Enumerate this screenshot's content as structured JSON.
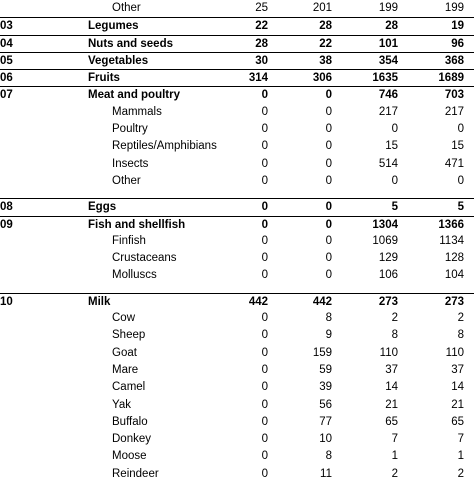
{
  "rows": [
    {
      "type": "sub",
      "code": "",
      "name": "Other",
      "v1": "25",
      "v2": "201",
      "v3": "199",
      "v4": "199"
    },
    {
      "type": "group",
      "code": "03",
      "name": "Legumes",
      "v1": "22",
      "v2": "28",
      "v3": "28",
      "v4": "19"
    },
    {
      "type": "group",
      "code": "04",
      "name": "Nuts and seeds",
      "v1": "28",
      "v2": "22",
      "v3": "101",
      "v4": "96"
    },
    {
      "type": "group",
      "code": "05",
      "name": "Vegetables",
      "v1": "30",
      "v2": "38",
      "v3": "354",
      "v4": "368"
    },
    {
      "type": "group",
      "code": "06",
      "name": "Fruits",
      "v1": "314",
      "v2": "306",
      "v3": "1635",
      "v4": "1689"
    },
    {
      "type": "group",
      "code": "07",
      "name": "Meat and poultry",
      "v1": "0",
      "v2": "0",
      "v3": "746",
      "v4": "703"
    },
    {
      "type": "sub",
      "code": "",
      "name": "Mammals",
      "v1": "0",
      "v2": "0",
      "v3": "217",
      "v4": "217"
    },
    {
      "type": "sub",
      "code": "",
      "name": "Poultry",
      "v1": "0",
      "v2": "0",
      "v3": "0",
      "v4": "0"
    },
    {
      "type": "sub",
      "code": "",
      "name": "Reptiles/Amphibians",
      "v1": "0",
      "v2": "0",
      "v3": "15",
      "v4": "15"
    },
    {
      "type": "sub",
      "code": "",
      "name": "Insects",
      "v1": "0",
      "v2": "0",
      "v3": "514",
      "v4": "471"
    },
    {
      "type": "sub",
      "code": "",
      "name": "Other",
      "v1": "0",
      "v2": "0",
      "v3": "0",
      "v4": "0"
    },
    {
      "type": "group",
      "code": "08",
      "name": "Eggs",
      "v1": "0",
      "v2": "0",
      "v3": "5",
      "v4": "5"
    },
    {
      "type": "group",
      "code": "09",
      "name": "Fish and shellfish",
      "v1": "0",
      "v2": "0",
      "v3": "1304",
      "v4": "1366"
    },
    {
      "type": "sub",
      "code": "",
      "name": "Finfish",
      "v1": "0",
      "v2": "0",
      "v3": "1069",
      "v4": "1134"
    },
    {
      "type": "sub",
      "code": "",
      "name": "Crustaceans",
      "v1": "0",
      "v2": "0",
      "v3": "129",
      "v4": "128"
    },
    {
      "type": "sub",
      "code": "",
      "name": "Molluscs",
      "v1": "0",
      "v2": "0",
      "v3": "106",
      "v4": "104"
    },
    {
      "type": "group",
      "code": "10",
      "name": "Milk",
      "v1": "442",
      "v2": "442",
      "v3": "273",
      "v4": "273"
    },
    {
      "type": "sub",
      "code": "",
      "name": "Cow",
      "v1": "0",
      "v2": "8",
      "v3": "2",
      "v4": "2"
    },
    {
      "type": "sub",
      "code": "",
      "name": "Sheep",
      "v1": "0",
      "v2": "9",
      "v3": "8",
      "v4": "8"
    },
    {
      "type": "sub",
      "code": "",
      "name": "Goat",
      "v1": "0",
      "v2": "159",
      "v3": "110",
      "v4": "110"
    },
    {
      "type": "sub",
      "code": "",
      "name": "Mare",
      "v1": "0",
      "v2": "59",
      "v3": "37",
      "v4": "37"
    },
    {
      "type": "sub",
      "code": "",
      "name": "Camel",
      "v1": "0",
      "v2": "39",
      "v3": "14",
      "v4": "14"
    },
    {
      "type": "sub",
      "code": "",
      "name": "Yak",
      "v1": "0",
      "v2": "56",
      "v3": "21",
      "v4": "21"
    },
    {
      "type": "sub",
      "code": "",
      "name": "Buffalo",
      "v1": "0",
      "v2": "77",
      "v3": "65",
      "v4": "65"
    },
    {
      "type": "sub",
      "code": "",
      "name": "Donkey",
      "v1": "0",
      "v2": "10",
      "v3": "7",
      "v4": "7"
    },
    {
      "type": "sub",
      "code": "",
      "name": "Moose",
      "v1": "0",
      "v2": "8",
      "v3": "1",
      "v4": "1"
    },
    {
      "type": "sub",
      "code": "",
      "name": "Reindeer",
      "v1": "0",
      "v2": "11",
      "v3": "2",
      "v4": "2"
    }
  ]
}
